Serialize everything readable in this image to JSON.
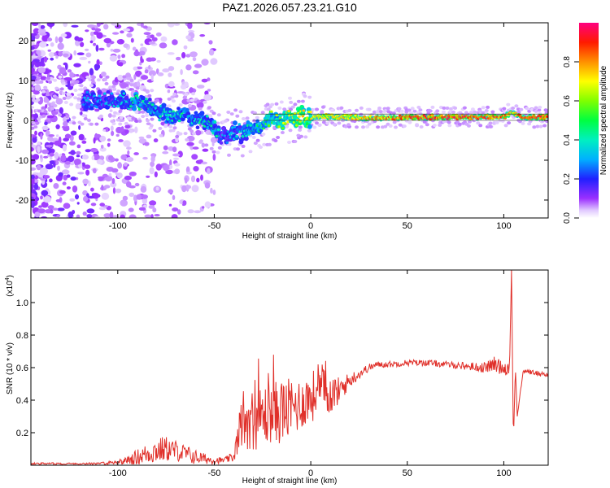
{
  "title": "PAZ1.2026.057.23.21.G10",
  "colors": {
    "snr_line": "#e0302a",
    "spectrogram_base": "#7000ff",
    "background": "#ffffff"
  },
  "chart_data": [
    {
      "type": "heatmap",
      "name": "spectrogram",
      "xlabel": "Height of straight line (km)",
      "ylabel": "Frequency (Hz)",
      "xlim": [
        -145,
        123
      ],
      "ylim": [
        -24.5,
        24.5
      ],
      "xticks": [
        -100,
        -50,
        0,
        50,
        100
      ],
      "xtick_labels": [
        "-100",
        "-50",
        "0",
        "50",
        "100"
      ],
      "yticks": [
        -20,
        -10,
        0,
        10,
        20
      ],
      "ytick_labels": [
        "-20",
        "-10",
        "0",
        "10",
        "20"
      ],
      "ridge": {
        "height_km": [
          -110,
          -100,
          -90,
          -80,
          -70,
          -60,
          -50,
          -45,
          -40,
          -35,
          -30,
          -25,
          -20,
          -15,
          -10,
          -5,
          0,
          5,
          10,
          20,
          30,
          40,
          50,
          60,
          70,
          80,
          90,
          100,
          104,
          110,
          123
        ],
        "frequency_hz": [
          5,
          5,
          5,
          2,
          1,
          1,
          -2,
          -4,
          -3,
          -3,
          -2,
          -1,
          0,
          0,
          0.5,
          1,
          0.5,
          1,
          1,
          0.8,
          0.6,
          0.6,
          0.8,
          0.8,
          0.8,
          0.8,
          0.8,
          0.8,
          2,
          0.8,
          0.8
        ],
        "amplitude": [
          0.3,
          0.35,
          0.45,
          0.4,
          0.45,
          0.4,
          0.45,
          0.3,
          0.35,
          0.4,
          0.45,
          0.55,
          0.6,
          0.62,
          0.7,
          0.75,
          0.7,
          0.75,
          0.7,
          0.72,
          0.78,
          0.8,
          0.85,
          0.88,
          0.9,
          0.9,
          0.88,
          0.85,
          0.7,
          0.9,
          0.9
        ]
      },
      "colorbar": {
        "label": "Normalized spectral amplitude",
        "range": [
          0,
          1
        ],
        "ticks": [
          0,
          0.2,
          0.4,
          0.6,
          0.8
        ],
        "tick_labels": [
          "0.0",
          "0.2",
          "0.4",
          "0.6",
          "0.8"
        ]
      }
    },
    {
      "type": "line",
      "name": "snr",
      "xlabel": "Height of straight line (km)",
      "ylabel": "SNR (10 * v/v)",
      "scale_note": "(x10",
      "scale_exp": "4",
      "scale_close": ")",
      "xlim": [
        -145,
        123
      ],
      "ylim": [
        0,
        1.2
      ],
      "xticks": [
        -100,
        -50,
        0,
        50,
        100
      ],
      "xtick_labels": [
        "-100",
        "-50",
        "0",
        "50",
        "100"
      ],
      "yticks": [
        0.2,
        0.4,
        0.6,
        0.8,
        1.0
      ],
      "ytick_labels": [
        "0.2",
        "0.4",
        "0.6",
        "0.8",
        "1.0"
      ],
      "x": [
        -145,
        -110,
        -100,
        -95,
        -90,
        -85,
        -80,
        -75,
        -70,
        -65,
        -60,
        -55,
        -50,
        -45,
        -40,
        -37,
        -35,
        -30,
        -25,
        -20,
        -15,
        -10,
        -5,
        0,
        5,
        10,
        15,
        20,
        25,
        30,
        35,
        40,
        50,
        60,
        70,
        80,
        90,
        95,
        100,
        103,
        104,
        105,
        106,
        107,
        110,
        115,
        120,
        123
      ],
      "mean": [
        0.01,
        0.01,
        0.02,
        0.03,
        0.05,
        0.07,
        0.09,
        0.1,
        0.09,
        0.07,
        0.05,
        0.04,
        0.03,
        0.03,
        0.05,
        0.2,
        0.3,
        0.28,
        0.3,
        0.33,
        0.32,
        0.35,
        0.38,
        0.42,
        0.45,
        0.44,
        0.46,
        0.52,
        0.56,
        0.6,
        0.62,
        0.62,
        0.63,
        0.63,
        0.62,
        0.61,
        0.6,
        0.62,
        0.6,
        0.6,
        1.2,
        0.15,
        0.6,
        0.3,
        0.58,
        0.57,
        0.56,
        0.56
      ],
      "noise": [
        0.004,
        0.004,
        0.01,
        0.015,
        0.03,
        0.04,
        0.05,
        0.05,
        0.04,
        0.035,
        0.03,
        0.02,
        0.015,
        0.01,
        0.02,
        0.08,
        0.12,
        0.12,
        0.12,
        0.12,
        0.12,
        0.12,
        0.1,
        0.1,
        0.1,
        0.08,
        0.05,
        0.03,
        0.02,
        0.015,
        0.012,
        0.012,
        0.012,
        0.012,
        0.012,
        0.015,
        0.02,
        0.03,
        0.03,
        0.03,
        0.0,
        0.0,
        0.0,
        0.0,
        0.01,
        0.01,
        0.01,
        0.01
      ]
    }
  ]
}
